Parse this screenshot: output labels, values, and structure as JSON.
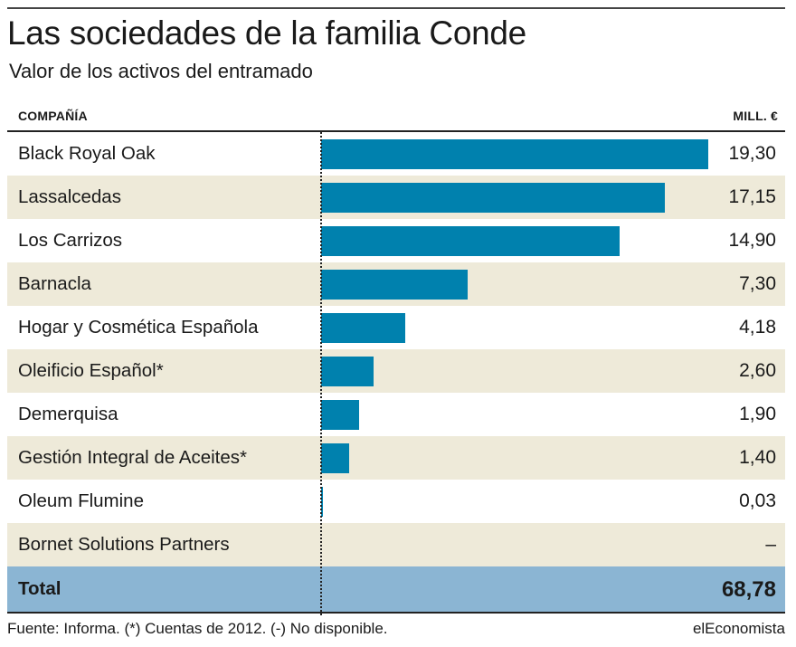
{
  "title": "Las sociedades de la familia Conde",
  "subtitle": "Valor de los activos del entramado",
  "header": {
    "left": "COMPAÑÍA",
    "right": "MILL. €"
  },
  "chart_data": {
    "type": "bar",
    "orientation": "horizontal",
    "title": "Las sociedades de la familia Conde",
    "subtitle": "Valor de los activos del entramado",
    "categories": [
      "Black Royal Oak",
      "Lassalcedas",
      "Los Carrizos",
      "Barnacla",
      "Hogar y Cosmética Española",
      "Oleificio Español*",
      "Demerquisa",
      "Gestión Integral de Aceites*",
      "Oleum Flumine",
      "Bornet Solutions Partners"
    ],
    "values": [
      19.3,
      17.15,
      14.9,
      7.3,
      4.18,
      2.6,
      1.9,
      1.4,
      0.03,
      null
    ],
    "value_labels": [
      "19,30",
      "17,15",
      "14,90",
      "7,30",
      "4,18",
      "2,60",
      "1,90",
      "1,40",
      "0,03",
      "–"
    ],
    "total": {
      "label": "Total",
      "value": 68.78,
      "value_label": "68,78"
    },
    "xlim": [
      0,
      19.3
    ],
    "bar_color": "#0081ae",
    "shade_color": "#eeead9",
    "total_color": "#8bb5d3"
  },
  "footer": {
    "source": "Fuente: Informa. (*) Cuentas de 2012. (-) No disponible.",
    "brand": "elEconomista"
  }
}
